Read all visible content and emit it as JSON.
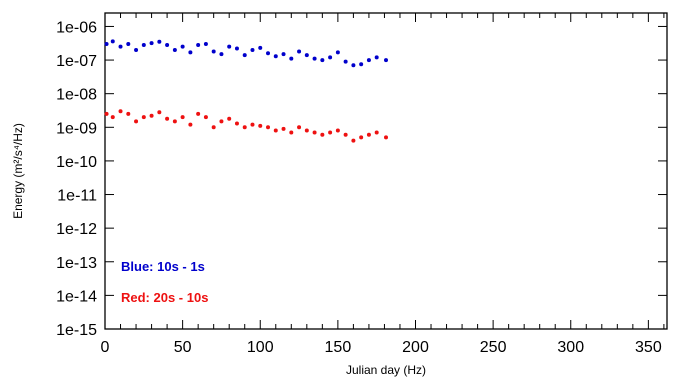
{
  "chart_data": {
    "type": "scatter",
    "xlabel": "Julian day (Hz)",
    "ylabel": "Energy (m²/s⁴/Hz)",
    "x_ticks": [
      "0",
      "50",
      "100",
      "150",
      "200",
      "250",
      "300",
      "350"
    ],
    "y_ticks": [
      "1e-15",
      "1e-14",
      "1e-13",
      "1e-12",
      "1e-11",
      "1e-10",
      "1e-09",
      "1e-08",
      "1e-07",
      "1e-06"
    ],
    "xlim": [
      0,
      362
    ],
    "ylim_log10": [
      -15,
      -5.6
    ],
    "y_scale": "log",
    "grid": false,
    "legend": [
      {
        "label": "Blue: 10s - 1s",
        "color": "#0000cc"
      },
      {
        "label": "Red: 20s - 10s",
        "color": "#ee1111"
      }
    ],
    "series": [
      {
        "name": "Blue: 10s - 1s",
        "color": "#0000cc",
        "x": [
          1,
          5,
          10,
          15,
          20,
          25,
          30,
          35,
          40,
          45,
          50,
          55,
          60,
          65,
          70,
          75,
          80,
          85,
          90,
          95,
          100,
          105,
          110,
          115,
          120,
          125,
          130,
          135,
          140,
          145,
          150,
          155,
          160,
          165,
          170,
          175,
          181
        ],
        "y": [
          3e-07,
          3.6e-07,
          2.5e-07,
          3e-07,
          2e-07,
          2.8e-07,
          3.2e-07,
          3.5e-07,
          2.8e-07,
          2e-07,
          2.5e-07,
          1.7e-07,
          2.8e-07,
          3e-07,
          1.8e-07,
          1.5e-07,
          2.5e-07,
          2.2e-07,
          1.4e-07,
          2e-07,
          2.3e-07,
          1.6e-07,
          1.3e-07,
          1.5e-07,
          1.1e-07,
          1.8e-07,
          1.4e-07,
          1.1e-07,
          1e-07,
          1.2e-07,
          1.7e-07,
          9e-08,
          7e-08,
          7.5e-08,
          1e-07,
          1.2e-07,
          1e-07
        ]
      },
      {
        "name": "Red: 20s - 10s",
        "color": "#ee1111",
        "x": [
          1,
          5,
          10,
          15,
          20,
          25,
          30,
          35,
          40,
          45,
          50,
          55,
          60,
          65,
          70,
          75,
          80,
          85,
          90,
          95,
          100,
          105,
          110,
          115,
          120,
          125,
          130,
          135,
          140,
          145,
          150,
          155,
          160,
          165,
          170,
          175,
          181
        ],
        "y": [
          2.5e-09,
          2e-09,
          3e-09,
          2.5e-09,
          1.5e-09,
          2e-09,
          2.2e-09,
          2.8e-09,
          1.8e-09,
          1.5e-09,
          2e-09,
          1.2e-09,
          2.5e-09,
          2e-09,
          1e-09,
          1.5e-09,
          1.8e-09,
          1.3e-09,
          1e-09,
          1.2e-09,
          1.1e-09,
          1e-09,
          8e-10,
          9e-10,
          7e-10,
          1e-09,
          8e-10,
          7e-10,
          6e-10,
          7e-10,
          8e-10,
          6e-10,
          4e-10,
          5e-10,
          6e-10,
          7e-10,
          5e-10
        ]
      }
    ]
  }
}
